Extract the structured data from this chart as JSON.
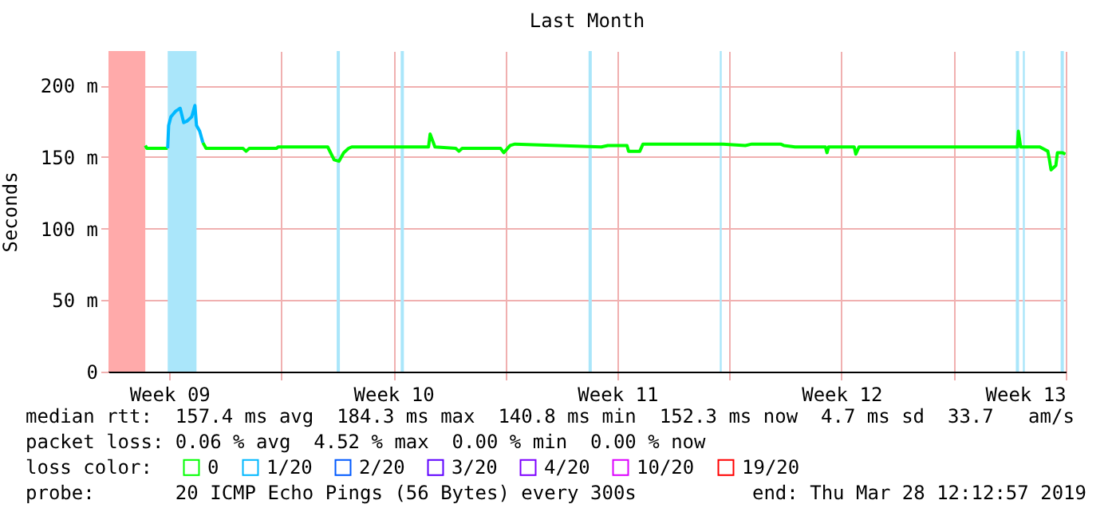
{
  "chart_data": {
    "type": "line",
    "title": "Last Month",
    "ylabel": "Seconds",
    "legend_title": "loss color:",
    "legend": "bottom",
    "grid": true,
    "xlim": [
      "2019-02-26T14:24",
      "2019-03-28T12:13"
    ],
    "ylim": [
      0,
      224
    ],
    "xticks": [
      {
        "value": "2019-02-28T12:00",
        "label": "Week 09"
      },
      {
        "value": "2019-03-04T00:00",
        "label": null
      },
      {
        "value": "2019-03-07T12:00",
        "label": "Week 10"
      },
      {
        "value": "2019-03-11T00:00",
        "label": null
      },
      {
        "value": "2019-03-14T12:00",
        "label": "Week 11"
      },
      {
        "value": "2019-03-18T00:00",
        "label": null
      },
      {
        "value": "2019-03-21T12:00",
        "label": "Week 12"
      },
      {
        "value": "2019-03-25T00:00",
        "label": null
      },
      {
        "value": "2019-03-28T12:00",
        "label": "Week 13"
      }
    ],
    "yticks": [
      {
        "value": 0,
        "label": "0"
      },
      {
        "value": 50,
        "label": "50 m"
      },
      {
        "value": 100,
        "label": "100 m"
      },
      {
        "value": 150,
        "label": "150 m"
      },
      {
        "value": 200,
        "label": "200 m"
      }
    ],
    "bands": [
      {
        "axis": "x",
        "from": "2019-02-26T14:24",
        "to": "2019-02-27T18:00",
        "color": "#ffaaaa"
      },
      {
        "axis": "x",
        "from": "2019-02-28T10:48",
        "to": "2019-03-01T08:24",
        "color": "#aae6fa"
      },
      {
        "axis": "x",
        "from": "2019-03-05T17:31",
        "to": "2019-03-05T19:55",
        "color": "#aae6fa"
      },
      {
        "axis": "x",
        "from": "2019-03-07T17:31",
        "to": "2019-03-07T19:55",
        "color": "#aae6fa"
      },
      {
        "axis": "x",
        "from": "2019-03-13T14:24",
        "to": "2019-03-13T16:48",
        "color": "#aae6fa"
      },
      {
        "axis": "x",
        "from": "2019-03-17T16:48",
        "to": "2019-03-17T18:14",
        "color": "#aae6fa"
      },
      {
        "axis": "x",
        "from": "2019-03-26T22:48",
        "to": "2019-03-27T01:12",
        "color": "#aae6fa"
      },
      {
        "axis": "x",
        "from": "2019-03-27T04:05",
        "to": "2019-03-27T05:31",
        "color": "#aae6fa"
      },
      {
        "axis": "x",
        "from": "2019-03-28T08:24",
        "to": "2019-03-28T10:48",
        "color": "#aae6fa"
      }
    ],
    "series": [
      {
        "name": "0",
        "color": "#00ff00",
        "x": [
          "2019-02-27T18:00",
          "2019-02-27T19:12",
          "2019-02-28T10:48",
          "2019-03-01T00:00",
          "2019-03-01T13:12",
          "2019-03-01T15:36",
          "2019-03-02T19:12",
          "2019-03-02T21:36",
          "2019-03-03T00:00",
          "2019-03-03T20:24",
          "2019-03-03T21:36",
          "2019-03-05T10:48",
          "2019-03-05T15:36",
          "2019-03-05T19:12",
          "2019-03-05T22:48",
          "2019-03-06T02:24",
          "2019-03-06T04:48",
          "2019-03-08T14:24",
          "2019-03-08T15:36",
          "2019-03-08T19:12",
          "2019-03-09T10:48",
          "2019-03-09T13:12",
          "2019-03-09T15:36",
          "2019-03-10T20:24",
          "2019-03-10T22:48",
          "2019-03-11T03:36",
          "2019-03-11T07:12",
          "2019-03-14T00:00",
          "2019-03-14T04:48",
          "2019-03-14T19:12",
          "2019-03-14T20:24",
          "2019-03-15T04:48",
          "2019-03-15T07:12",
          "2019-03-17T19:12",
          "2019-03-18T12:00",
          "2019-03-18T16:48",
          "2019-03-19T14:24",
          "2019-03-19T16:48",
          "2019-03-20T01:12",
          "2019-03-21T00:00",
          "2019-03-21T01:12",
          "2019-03-21T02:24",
          "2019-03-21T21:36",
          "2019-03-21T22:48",
          "2019-03-22T01:12",
          "2019-03-27T00:00",
          "2019-03-27T00:43",
          "2019-03-27T02:24",
          "2019-03-27T16:48",
          "2019-03-27T22:48",
          "2019-03-28T00:00",
          "2019-03-28T01:12",
          "2019-03-28T04:48",
          "2019-03-28T06:00",
          "2019-03-28T09:36",
          "2019-03-28T12:00"
        ],
        "values": [
          158,
          156,
          156,
          null,
          160,
          156,
          156,
          154,
          156,
          156,
          157,
          157,
          148,
          147,
          153,
          156,
          157,
          157,
          166,
          157,
          156,
          154,
          156,
          156,
          153,
          158,
          159,
          157,
          158,
          158,
          154,
          154,
          159,
          159,
          158,
          159,
          159,
          158,
          157,
          157,
          153,
          157,
          157,
          152,
          157,
          157,
          168,
          157,
          157,
          154,
          148,
          141,
          144,
          153,
          153,
          152
        ]
      },
      {
        "name": "1/20",
        "color": "#00b8ff",
        "x": [
          "2019-02-28T10:48",
          "2019-02-28T11:31",
          "2019-02-28T13:12",
          "2019-02-28T16:48",
          "2019-02-28T20:10",
          "2019-02-28T22:48",
          "2019-03-01T01:12",
          "2019-03-01T04:48",
          "2019-03-01T07:12",
          "2019-03-01T08:24",
          "2019-03-01T10:48",
          "2019-03-01T13:12"
        ],
        "values": [
          156,
          172,
          178,
          182,
          184,
          174,
          175,
          178,
          186,
          172,
          168,
          160
        ]
      },
      {
        "name": "2/20",
        "color": "#0059ff",
        "values": [
          null
        ]
      },
      {
        "name": "3/20",
        "color": "#5e00ff",
        "values": [
          null
        ]
      },
      {
        "name": "4/20",
        "color": "#7e00ff",
        "values": [
          null
        ]
      },
      {
        "name": "10/20",
        "color": "#dd00ff",
        "values": [
          null
        ]
      },
      {
        "name": "19/20",
        "color": "#ff0000",
        "values": [
          null
        ]
      }
    ],
    "annotations": [
      "median rtt:  157.4 ms avg  184.3 ms max  140.8 ms min  152.3 ms now  4.7 ms sd  33.7   am/s",
      "packet loss: 0.06 % avg  4.52 % max  0.00 % min  0.00 % now",
      "probe:       20 ICMP Echo Pings (56 Bytes) every 300s",
      "end: Thu Mar 28 12:12:57 2019"
    ]
  }
}
